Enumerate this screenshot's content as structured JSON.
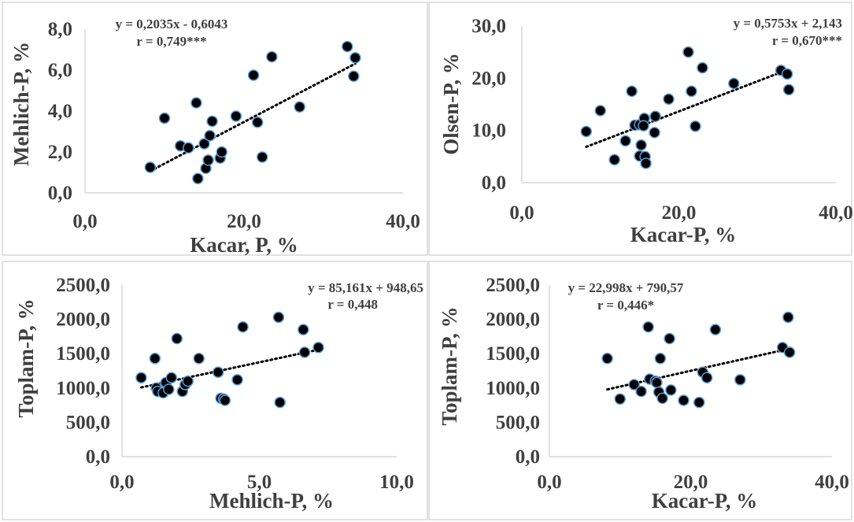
{
  "chart_data": [
    {
      "type": "scatter",
      "xlabel": "Kacar, P, %",
      "ylabel": "Mehlich-P, %",
      "xlim": [
        0,
        40
      ],
      "ylim": [
        0,
        8
      ],
      "xticks": [
        "0,0",
        "20,0",
        "40,0"
      ],
      "yticks": [
        "0,0",
        "2,0",
        "4,0",
        "6,0",
        "8,0"
      ],
      "equation": "y = 0,2035x - 0,6043",
      "r": "r = 0,749***",
      "trend": {
        "slope": 0.2035,
        "intercept": -0.6043,
        "x_range": [
          8.2,
          34
        ]
      },
      "points": [
        [
          8.2,
          1.25
        ],
        [
          10,
          3.65
        ],
        [
          12,
          2.3
        ],
        [
          13,
          2.2
        ],
        [
          14,
          4.4
        ],
        [
          14.2,
          0.7
        ],
        [
          15,
          2.4
        ],
        [
          15.2,
          1.2
        ],
        [
          15.5,
          1.6
        ],
        [
          15.7,
          2.8
        ],
        [
          16,
          3.5
        ],
        [
          17,
          1.7
        ],
        [
          17.2,
          2.0
        ],
        [
          19,
          3.75
        ],
        [
          21.2,
          5.75
        ],
        [
          21.7,
          3.45
        ],
        [
          22.3,
          1.75
        ],
        [
          23.5,
          6.65
        ],
        [
          27,
          4.2
        ],
        [
          33,
          7.15
        ],
        [
          34,
          6.6
        ],
        [
          33.8,
          5.7
        ]
      ]
    },
    {
      "type": "scatter",
      "xlabel": "Kacar-P, %",
      "ylabel": "Olsen-P, %",
      "xlim": [
        0,
        40
      ],
      "ylim": [
        0,
        30
      ],
      "xticks": [
        "0,0",
        "20,0",
        "40,0"
      ],
      "yticks": [
        "0,0",
        "10,0",
        "20,0",
        "30,0"
      ],
      "equation": "y = 0,5753x + 2,143",
      "r": "r = 0,670***",
      "trend": {
        "slope": 0.5753,
        "intercept": 2.143,
        "x_range": [
          8.2,
          34
        ]
      },
      "points": [
        [
          8.2,
          9.8
        ],
        [
          10,
          13.8
        ],
        [
          11.8,
          4.4
        ],
        [
          13.2,
          8.0
        ],
        [
          14,
          17.5
        ],
        [
          14.4,
          11.0
        ],
        [
          15,
          11.1
        ],
        [
          15.2,
          7.2
        ],
        [
          15,
          5.1
        ],
        [
          15.6,
          12.3
        ],
        [
          15.5,
          10.9
        ],
        [
          15.7,
          5.0
        ],
        [
          15.8,
          3.7
        ],
        [
          17,
          12.7
        ],
        [
          16.9,
          9.6
        ],
        [
          18.7,
          16.0
        ],
        [
          21.2,
          25.0
        ],
        [
          21.6,
          17.5
        ],
        [
          22.1,
          10.8
        ],
        [
          23,
          22.0
        ],
        [
          27,
          19.0
        ],
        [
          33,
          21.5
        ],
        [
          33.8,
          20.8
        ],
        [
          34,
          17.8
        ]
      ]
    },
    {
      "type": "scatter",
      "xlabel": "Mehlich-P, %",
      "ylabel": "Toplam-P, %",
      "xlim": [
        0,
        10
      ],
      "ylim": [
        0,
        2500
      ],
      "xticks": [
        "0,0",
        "5,0",
        "10,0"
      ],
      "yticks": [
        "0,0",
        "500,0",
        "1000,0",
        "1500,0",
        "2000,0",
        "2500,0"
      ],
      "equation": "y = 85,161x + 948,65",
      "r": "r = 0,448",
      "trend": {
        "slope": 85.161,
        "intercept": 948.65,
        "x_range": [
          0.7,
          7.2
        ]
      },
      "points": [
        [
          0.7,
          1150
        ],
        [
          1.2,
          1430
        ],
        [
          1.25,
          1000
        ],
        [
          1.3,
          950
        ],
        [
          1.5,
          930
        ],
        [
          1.6,
          1080
        ],
        [
          1.7,
          980
        ],
        [
          1.8,
          1150
        ],
        [
          2.0,
          1720
        ],
        [
          2.2,
          950
        ],
        [
          2.3,
          1050
        ],
        [
          2.4,
          1100
        ],
        [
          2.8,
          1430
        ],
        [
          3.5,
          1230
        ],
        [
          3.6,
          850
        ],
        [
          3.7,
          840
        ],
        [
          3.75,
          820
        ],
        [
          4.2,
          1120
        ],
        [
          4.4,
          1890
        ],
        [
          5.7,
          2030
        ],
        [
          5.75,
          790
        ],
        [
          6.6,
          1850
        ],
        [
          6.65,
          1520
        ],
        [
          7.15,
          1590
        ]
      ]
    },
    {
      "type": "scatter",
      "xlabel": "Kacar-P, %",
      "ylabel": "Toplam-P, %",
      "xlim": [
        0,
        40
      ],
      "ylim": [
        0,
        2500
      ],
      "xticks": [
        "0,0",
        "20,0",
        "40,0"
      ],
      "yticks": [
        "0,0",
        "500,0",
        "1000,0",
        "1500,0",
        "2000,0",
        "2500,0"
      ],
      "equation": "y = 22,998x + 790,57",
      "r": "r = 0,446*",
      "trend": {
        "slope": 22.998,
        "intercept": 790.57,
        "x_range": [
          8.2,
          34
        ]
      },
      "points": [
        [
          8.2,
          1430
        ],
        [
          10,
          840
        ],
        [
          12,
          1050
        ],
        [
          13,
          950
        ],
        [
          14,
          1890
        ],
        [
          14.2,
          1130
        ],
        [
          15,
          1100
        ],
        [
          15.2,
          1080
        ],
        [
          15.5,
          940
        ],
        [
          15.7,
          1430
        ],
        [
          16,
          850
        ],
        [
          17,
          1720
        ],
        [
          17.2,
          970
        ],
        [
          19,
          820
        ],
        [
          21.2,
          790
        ],
        [
          21.7,
          1230
        ],
        [
          22.3,
          1150
        ],
        [
          23.5,
          1850
        ],
        [
          27,
          1120
        ],
        [
          33,
          1590
        ],
        [
          33.8,
          2030
        ],
        [
          34,
          1520
        ]
      ]
    }
  ]
}
